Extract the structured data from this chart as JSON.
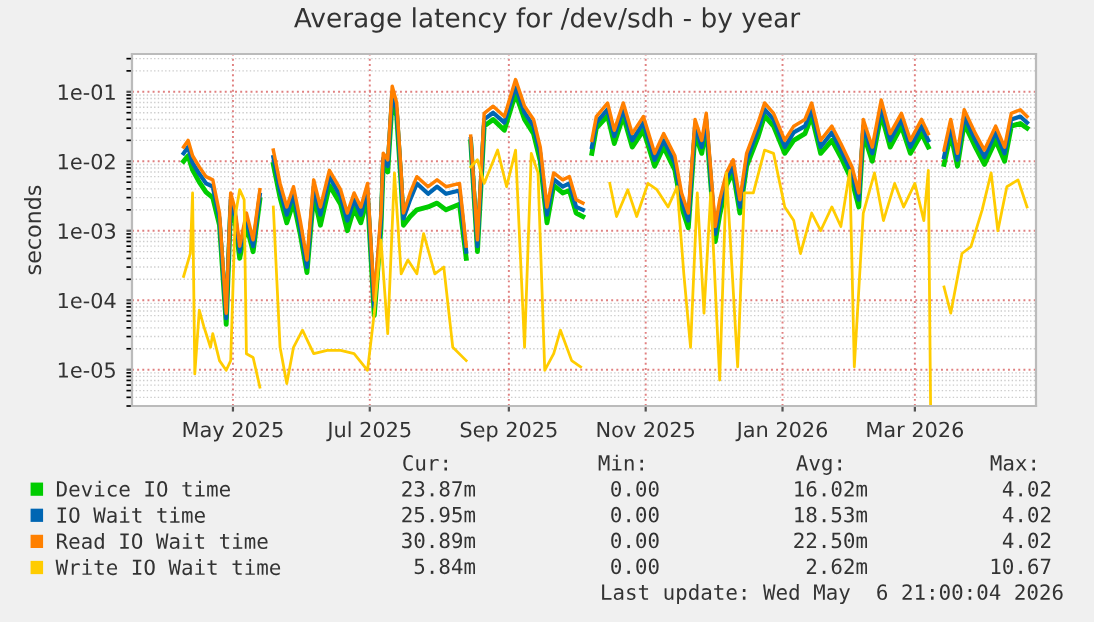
{
  "chart_data": {
    "type": "line",
    "title": "Average latency for /dev/sdh - by year",
    "ylabel": "seconds",
    "log": true,
    "grid": true,
    "legend": "bottom",
    "marker": "none",
    "line_style": "solid",
    "xlim": [
      "2025-04-01",
      "2026-05-09"
    ],
    "ylim": [
      3e-06,
      0.35
    ],
    "xticks": [
      {
        "value": "2025-05-16",
        "label": "May 2025"
      },
      {
        "value": "2025-07-16",
        "label": "Jul 2025"
      },
      {
        "value": "2025-09-16",
        "label": "Sep 2025"
      },
      {
        "value": "2025-11-16",
        "label": "Nov 2025"
      },
      {
        "value": "2026-01-16",
        "label": "Jan 2026"
      },
      {
        "value": "2026-03-16",
        "label": "Mar 2026"
      }
    ],
    "yticks": [
      {
        "value": 1e-05,
        "label": "1e-05"
      },
      {
        "value": 0.0001,
        "label": "1e-04"
      },
      {
        "value": 0.001,
        "label": "1e-03"
      },
      {
        "value": 0.01,
        "label": "1e-02"
      },
      {
        "value": 0.1,
        "label": "1e-01"
      }
    ],
    "x": [
      "2025-04-24",
      "2025-04-26",
      "2025-04-28",
      "2025-05-01",
      "2025-05-04",
      "2025-05-07",
      "2025-05-10",
      "2025-05-13",
      "2025-05-15",
      "2025-05-17",
      "2025-05-19",
      "2025-05-22",
      "2025-05-25",
      "2025-05-28",
      "2025-05-31",
      "2025-06-03",
      "2025-06-06",
      "2025-06-09",
      "2025-06-12",
      "2025-06-15",
      "2025-06-18",
      "2025-06-21",
      "2025-06-24",
      "2025-06-28",
      "2025-07-03",
      "2025-07-06",
      "2025-07-09",
      "2025-07-12",
      "2025-07-15",
      "2025-07-18",
      "2025-07-21",
      "2025-07-22",
      "2025-07-24",
      "2025-07-26",
      "2025-07-28",
      "2025-07-30",
      "2025-07-31",
      "2025-08-03",
      "2025-08-06",
      "2025-08-11",
      "2025-08-15",
      "2025-08-19",
      "2025-08-25",
      "2025-08-28",
      "2025-08-29",
      "2025-08-30",
      "2025-09-02",
      "2025-09-05",
      "2025-09-09",
      "2025-09-14",
      "2025-09-19",
      "2025-09-23",
      "2025-09-27",
      "2025-09-30",
      "2025-10-03",
      "2025-10-06",
      "2025-10-10",
      "2025-10-13",
      "2025-10-16",
      "2025-10-19",
      "2025-10-21",
      "2025-10-23",
      "2025-10-25",
      "2025-10-30",
      "2025-11-02",
      "2025-11-06",
      "2025-11-10",
      "2025-11-15",
      "2025-11-20",
      "2025-11-24",
      "2025-11-29",
      "2025-12-02",
      "2025-12-05",
      "2025-12-08",
      "2025-12-11",
      "2025-12-13",
      "2025-12-17",
      "2025-12-19",
      "2025-12-22",
      "2025-12-25",
      "2025-12-28",
      "2025-12-31",
      "2026-01-05",
      "2026-01-08",
      "2026-01-12",
      "2026-01-17",
      "2026-01-21",
      "2026-01-26",
      "2026-01-29",
      "2026-02-02",
      "2026-02-07",
      "2026-02-11",
      "2026-02-16",
      "2026-02-19",
      "2026-02-21",
      "2026-02-25",
      "2026-03-01",
      "2026-03-05",
      "2026-03-10",
      "2026-03-14",
      "2026-03-19",
      "2026-03-22",
      "2026-03-26",
      "2026-03-29",
      "2026-04-01",
      "2026-04-04",
      "2026-04-07",
      "2026-04-12",
      "2026-04-16",
      "2026-04-21",
      "2026-04-25",
      "2026-04-28",
      "2026-05-02",
      "2026-05-05"
    ],
    "series": [
      {
        "name": "Device IO time",
        "color": "#00cc00",
        "values": [
          0.01,
          0.012,
          0.0075,
          0.005,
          0.0036,
          0.003,
          0.0012,
          4.5e-05,
          0.0022,
          0.0013,
          0.0004,
          0.0012,
          0.0005,
          0.0028,
          null,
          0.009,
          0.003,
          0.0013,
          0.0026,
          0.0009,
          0.00025,
          0.0033,
          0.0012,
          0.0045,
          0.0024,
          0.001,
          0.0021,
          0.0013,
          0.003,
          6e-05,
          0.0011,
          0.009,
          0.007,
          0.075,
          0.045,
          0.0045,
          0.0012,
          0.0016,
          0.002,
          0.0022,
          0.0025,
          0.002,
          0.0024,
          0.0004,
          null,
          0.019,
          0.0005,
          0.032,
          0.04,
          0.028,
          0.095,
          0.04,
          0.025,
          0.01,
          0.0013,
          0.0045,
          0.0035,
          0.0038,
          0.0018,
          0.0016,
          null,
          0.013,
          0.03,
          0.045,
          0.018,
          0.045,
          0.016,
          0.028,
          0.0085,
          0.016,
          0.0075,
          0.0022,
          0.0011,
          0.025,
          0.013,
          0.032,
          0.0007,
          0.0017,
          0.0045,
          0.007,
          0.0018,
          0.0085,
          0.022,
          0.045,
          0.032,
          0.013,
          0.02,
          0.025,
          0.045,
          0.013,
          0.02,
          0.0115,
          0.0052,
          0.0022,
          0.025,
          0.01,
          0.048,
          0.016,
          0.032,
          0.013,
          0.025,
          0.016,
          null,
          0.009,
          0.025,
          0.0085,
          0.035,
          0.016,
          0.009,
          0.02,
          0.01,
          0.032,
          0.035,
          0.03
        ]
      },
      {
        "name": "IO Wait time",
        "color": "#0066b3",
        "values": [
          0.013,
          0.016,
          0.0095,
          0.0066,
          0.0048,
          0.0043,
          0.0015,
          5.5e-05,
          0.0028,
          0.0016,
          0.0005,
          0.0015,
          0.0006,
          0.0033,
          null,
          0.0115,
          0.0038,
          0.0017,
          0.0034,
          0.0011,
          0.0003,
          0.0043,
          0.0017,
          0.006,
          0.0031,
          0.0014,
          0.0028,
          0.0017,
          0.0038,
          8e-05,
          0.0014,
          0.011,
          0.0085,
          0.095,
          0.055,
          0.0055,
          0.0015,
          0.0028,
          0.0048,
          0.0034,
          0.0043,
          0.0034,
          0.0038,
          0.0005,
          null,
          0.021,
          0.0006,
          0.04,
          0.05,
          0.036,
          0.12,
          0.05,
          0.032,
          0.013,
          0.0017,
          0.0055,
          0.0043,
          0.0048,
          0.0022,
          0.002,
          null,
          0.016,
          0.036,
          0.056,
          0.023,
          0.056,
          0.02,
          0.036,
          0.0105,
          0.02,
          0.0095,
          0.0028,
          0.0014,
          0.032,
          0.016,
          0.04,
          0.0009,
          0.0022,
          0.0055,
          0.0085,
          0.0022,
          0.0105,
          0.028,
          0.056,
          0.04,
          0.016,
          0.026,
          0.032,
          0.056,
          0.016,
          0.026,
          0.0145,
          0.0066,
          0.0028,
          0.032,
          0.013,
          0.06,
          0.02,
          0.04,
          0.016,
          0.032,
          0.02,
          null,
          0.0115,
          0.032,
          0.0105,
          0.044,
          0.02,
          0.0115,
          0.026,
          0.013,
          0.04,
          0.044,
          0.036
        ]
      },
      {
        "name": "Read IO Wait time",
        "color": "#ff8000",
        "values": [
          0.016,
          0.02,
          0.012,
          0.0083,
          0.006,
          0.0054,
          0.0018,
          6.5e-05,
          0.0035,
          0.002,
          0.0006,
          0.0018,
          0.00074,
          0.0039,
          null,
          0.0145,
          0.0048,
          0.0022,
          0.0043,
          0.0014,
          0.00038,
          0.0054,
          0.0022,
          0.0074,
          0.0039,
          0.0018,
          0.0035,
          0.0022,
          0.0048,
          0.0001,
          0.0018,
          0.013,
          0.0105,
          0.12,
          0.069,
          0.0068,
          0.0018,
          0.0035,
          0.006,
          0.0043,
          0.0054,
          0.0043,
          0.0048,
          0.0006,
          null,
          0.023,
          0.00074,
          0.049,
          0.062,
          0.044,
          0.15,
          0.062,
          0.04,
          0.016,
          0.0022,
          0.0068,
          0.0054,
          0.006,
          0.0028,
          0.0025,
          null,
          0.02,
          0.044,
          0.069,
          0.028,
          0.069,
          0.025,
          0.044,
          0.013,
          0.025,
          0.012,
          0.0035,
          0.0018,
          0.04,
          0.02,
          0.049,
          0.00115,
          0.0028,
          0.0068,
          0.0105,
          0.0028,
          0.013,
          0.035,
          0.069,
          0.049,
          0.02,
          0.032,
          0.04,
          0.069,
          0.02,
          0.032,
          0.018,
          0.0083,
          0.0035,
          0.04,
          0.016,
          0.076,
          0.025,
          0.049,
          0.02,
          0.04,
          0.025,
          null,
          0.0145,
          0.04,
          0.013,
          0.055,
          0.025,
          0.0145,
          0.032,
          0.016,
          0.049,
          0.055,
          0.044
        ]
      },
      {
        "name": "Write IO Wait time",
        "color": "#ffcc00",
        "x": [
          "2025-04-24",
          "2025-04-27",
          "2025-04-28",
          "2025-04-29",
          "2025-05-01",
          "2025-05-03",
          "2025-05-06",
          "2025-05-07",
          "2025-05-10",
          "2025-05-13",
          "2025-05-15",
          "2025-05-17",
          "2025-05-19",
          "2025-05-21",
          "2025-05-22",
          "2025-05-25",
          "2025-05-28",
          "2025-05-31",
          "2025-06-03",
          "2025-06-06",
          "2025-06-09",
          "2025-06-12",
          "2025-06-16",
          "2025-06-21",
          "2025-06-27",
          "2025-07-03",
          "2025-07-09",
          "2025-07-15",
          "2025-07-18",
          "2025-07-21",
          "2025-07-24",
          "2025-07-27",
          "2025-07-30",
          "2025-08-02",
          "2025-08-06",
          "2025-08-09",
          "2025-08-14",
          "2025-08-18",
          "2025-08-22",
          "2025-08-28",
          "2025-08-29",
          "2025-08-30",
          "2025-09-02",
          "2025-09-05",
          "2025-09-11",
          "2025-09-15",
          "2025-09-19",
          "2025-09-23",
          "2025-09-26",
          "2025-09-29",
          "2025-10-02",
          "2025-10-06",
          "2025-10-09",
          "2025-10-14",
          "2025-10-18",
          "2025-10-21",
          "2025-10-31",
          "2025-11-03",
          "2025-11-08",
          "2025-11-12",
          "2025-11-17",
          "2025-11-21",
          "2025-11-26",
          "2025-11-30",
          "2025-12-03",
          "2025-12-06",
          "2025-12-09",
          "2025-12-12",
          "2025-12-15",
          "2025-12-19",
          "2025-12-22",
          "2025-12-27",
          "2025-12-30",
          "2026-01-03",
          "2026-01-08",
          "2026-01-12",
          "2026-01-17",
          "2026-01-21",
          "2026-01-24",
          "2026-01-29",
          "2026-02-02",
          "2026-02-07",
          "2026-02-11",
          "2026-02-15",
          "2026-02-17",
          "2026-02-21",
          "2026-02-26",
          "2026-03-02",
          "2026-03-07",
          "2026-03-11",
          "2026-03-16",
          "2026-03-20",
          "2026-03-22",
          "2026-03-23",
          "2026-03-26",
          "2026-03-29",
          "2026-04-01",
          "2026-04-06",
          "2026-04-10",
          "2026-04-15",
          "2026-04-19",
          "2026-04-22",
          "2026-04-26",
          "2026-05-01",
          "2026-05-05"
        ],
        "values": [
          0.00022,
          0.00047,
          0.0035,
          8.7e-06,
          7.2e-05,
          4.2e-05,
          2.1e-05,
          3.3e-05,
          1.35e-05,
          9.8e-06,
          1.35e-05,
          0.0016,
          0.0039,
          0.0028,
          1.7e-05,
          1.5e-05,
          5.6e-06,
          null,
          0.0022,
          2.1e-05,
          6.3e-06,
          2.1e-05,
          3.7e-05,
          1.7e-05,
          1.9e-05,
          1.9e-05,
          1.7e-05,
          9.8e-06,
          6.5e-05,
          0.00074,
          3.3e-05,
          0.0068,
          0.00024,
          0.00038,
          0.00024,
          0.00091,
          0.00024,
          0.0003,
          2.1e-05,
          1.35e-05,
          null,
          0.0083,
          0.0105,
          0.0048,
          0.0145,
          0.0043,
          0.0145,
          2.1e-05,
          0.013,
          0.0068,
          9.8e-06,
          1.7e-05,
          3.7e-05,
          1.35e-05,
          1.1e-05,
          null,
          0.0048,
          0.0016,
          0.0039,
          0.0016,
          0.0048,
          0.0039,
          0.0022,
          0.0043,
          0.00024,
          2.1e-05,
          0.0035,
          6.5e-05,
          0.0035,
          7.1e-06,
          0.0068,
          1.1e-05,
          0.0035,
          0.0035,
          0.0145,
          0.013,
          0.0022,
          0.0014,
          0.00047,
          0.0018,
          0.001,
          0.0022,
          0.00115,
          0.0074,
          1.1e-05,
          0.0018,
          0.0068,
          0.0014,
          0.0048,
          0.0022,
          0.0048,
          0.0014,
          0.0074,
          3.2e-06,
          null,
          0.000155,
          6.5e-05,
          0.00047,
          0.00059,
          0.002,
          0.0068,
          0.001,
          0.0043,
          0.0054,
          0.0022
        ]
      }
    ],
    "annotations": [
      "Cur:",
      "Min:",
      "Avg:",
      "Max:",
      "23.87m",
      "0.00",
      "16.02m",
      "4.02",
      "25.95m",
      "0.00",
      "18.53m",
      "4.02",
      "30.89m",
      "0.00",
      "22.50m",
      "4.02",
      "5.84m",
      "0.00",
      "2.62m",
      "10.67",
      "Last update: Wed May  6 21:00:04 2026"
    ]
  }
}
